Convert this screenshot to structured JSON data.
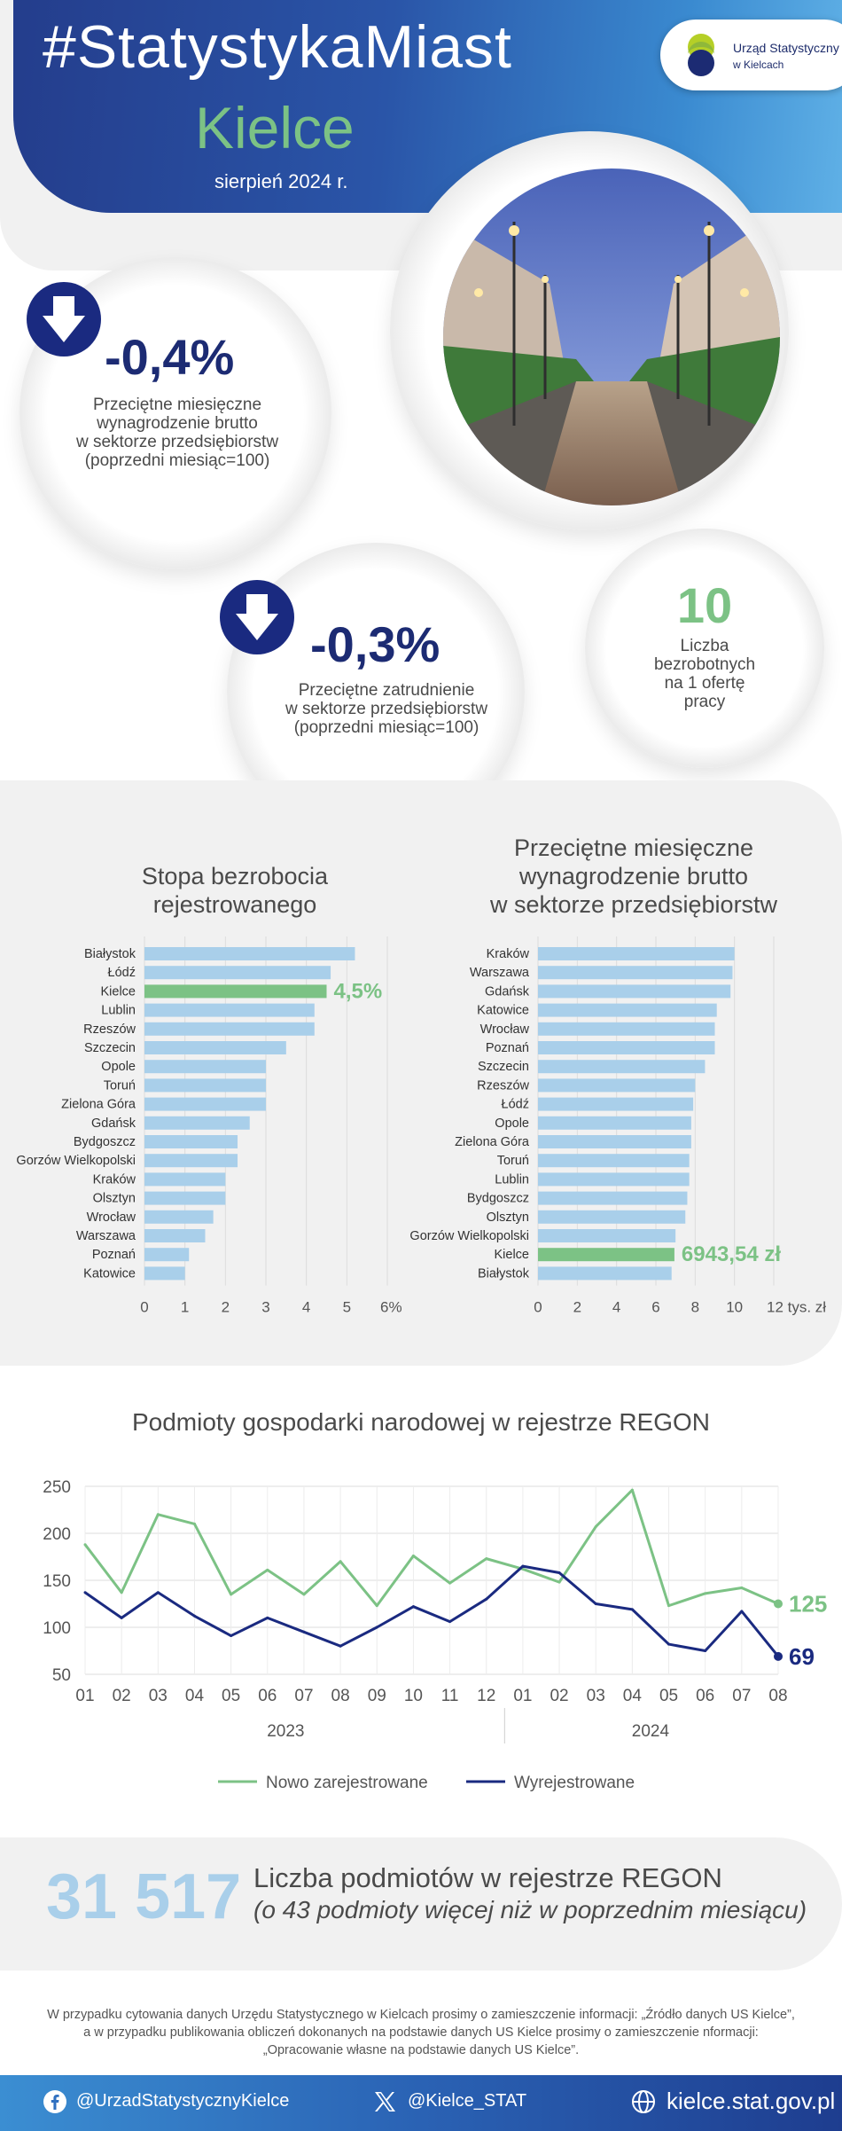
{
  "header": {
    "hashtag": "#StatystykaMiast",
    "city": "Kielce",
    "date": "sierpień 2024 r.",
    "logo_line1": "Urząd Statystyczny",
    "logo_line2": "w Kielcach"
  },
  "kpis": {
    "wage_change": {
      "value": "-0,4%",
      "desc": [
        "Przeciętne miesięczne",
        "wynagrodzenie brutto",
        "w sektorze przedsiębiorstw",
        "(poprzedni miesiąc=100)"
      ],
      "icon": "arrow-down-icon"
    },
    "employment_change": {
      "value": "-0,3%",
      "desc": [
        "Przeciętne zatrudnienie",
        "w sektorze przedsiębiorstw",
        "(poprzedni miesiąc=100)"
      ],
      "icon": "arrow-down-icon"
    },
    "unemployed_per_offer": {
      "value": "10",
      "desc": [
        "Liczba",
        "bezrobotnych",
        "na 1 ofertę",
        "pracy"
      ]
    }
  },
  "colors": {
    "navy": "#1c2b73",
    "green": "#7cc285",
    "bar_blue": "#a9cfea",
    "highlight": "#7cc285"
  },
  "chart_data": [
    {
      "type": "bar",
      "orientation": "horizontal",
      "title": "Stopa bezrobocia rejestrowanego",
      "title_lines": [
        "Stopa bezrobocia",
        "rejestrowanego"
      ],
      "categories": [
        "Białystok",
        "Łódź",
        "Kielce",
        "Lublin",
        "Rzeszów",
        "Szczecin",
        "Opole",
        "Toruń",
        "Zielona Góra",
        "Gdańsk",
        "Bydgoszcz",
        "Gorzów Wielkopolski",
        "Kraków",
        "Olsztyn",
        "Wrocław",
        "Warszawa",
        "Poznań",
        "Katowice"
      ],
      "values": [
        5.2,
        4.6,
        4.5,
        4.2,
        4.2,
        3.5,
        3.0,
        3.0,
        3.0,
        2.6,
        2.3,
        2.3,
        2.0,
        2.0,
        1.7,
        1.5,
        1.1,
        1.0
      ],
      "highlight": "Kielce",
      "highlight_label": "4,5%",
      "xlim": [
        0,
        6
      ],
      "xticks": [
        "0",
        "1",
        "2",
        "3",
        "4",
        "5",
        "6%"
      ]
    },
    {
      "type": "bar",
      "orientation": "horizontal",
      "title": "Przeciętne miesięczne wynagrodzenie brutto w sektorze przedsiębiorstw",
      "title_lines": [
        "Przeciętne miesięczne",
        "wynagrodzenie brutto",
        "w sektorze przedsiębiorstw"
      ],
      "categories": [
        "Kraków",
        "Warszawa",
        "Gdańsk",
        "Katowice",
        "Wrocław",
        "Poznań",
        "Szczecin",
        "Rzeszów",
        "Łódź",
        "Opole",
        "Zielona Góra",
        "Toruń",
        "Lublin",
        "Bydgoszcz",
        "Olsztyn",
        "Gorzów Wielkopolski",
        "Kielce",
        "Białystok"
      ],
      "values": [
        10.0,
        9.9,
        9.8,
        9.1,
        9.0,
        9.0,
        8.5,
        8.0,
        7.9,
        7.8,
        7.8,
        7.7,
        7.7,
        7.6,
        7.5,
        7.0,
        6.94354,
        6.8
      ],
      "highlight": "Kielce",
      "highlight_label": "6943,54 zł",
      "xlim": [
        0,
        12
      ],
      "xticks": [
        "0",
        "2",
        "4",
        "6",
        "8",
        "10",
        "12 tys. zł"
      ]
    },
    {
      "type": "line",
      "title": "Podmioty gospodarki narodowej w rejestrze REGON",
      "x": [
        "01",
        "02",
        "03",
        "04",
        "05",
        "06",
        "07",
        "08",
        "09",
        "10",
        "11",
        "12",
        "01",
        "02",
        "03",
        "04",
        "05",
        "06",
        "07",
        "08"
      ],
      "year_labels": [
        "2023",
        "2024"
      ],
      "ylim": [
        50,
        250
      ],
      "yticks": [
        "50",
        "100",
        "150",
        "200",
        "250"
      ],
      "series": [
        {
          "name": "Nowo zarejestrowane",
          "color": "#7cc285",
          "values": [
            188,
            137,
            220,
            210,
            135,
            161,
            135,
            170,
            123,
            176,
            147,
            173,
            162,
            148,
            207,
            246,
            123,
            136,
            142,
            125
          ],
          "end_label": "125"
        },
        {
          "name": "Wyrejestrowane",
          "color": "#1a2a80",
          "values": [
            137,
            110,
            137,
            112,
            91,
            110,
            95,
            80,
            100,
            122,
            106,
            130,
            165,
            158,
            125,
            119,
            82,
            75,
            117,
            69
          ],
          "end_label": "69"
        }
      ]
    }
  ],
  "regon_total": {
    "value": "31 517",
    "label": "Liczba podmiotów w rejestrze REGON",
    "sublabel": "(o 43 podmioty więcej niż w poprzednim miesiącu)"
  },
  "footnote": [
    "W przypadku cytowania danych Urzędu Statystycznego w Kielcach prosimy o zamieszczenie informacji: „Źródło danych US Kielce”,",
    "a w przypadku publikowania obliczeń dokonanych na podstawie danych US Kielce prosimy o zamieszczenie nformacji:",
    "„Opracowanie własne na podstawie danych US Kielce”."
  ],
  "footer": {
    "facebook": "@UrzadStatystycznyKielce",
    "twitter": "@Kielce_STAT",
    "website": "kielce.stat.gov.pl",
    "icons": [
      "facebook-icon",
      "x-icon",
      "globe-icon"
    ]
  }
}
